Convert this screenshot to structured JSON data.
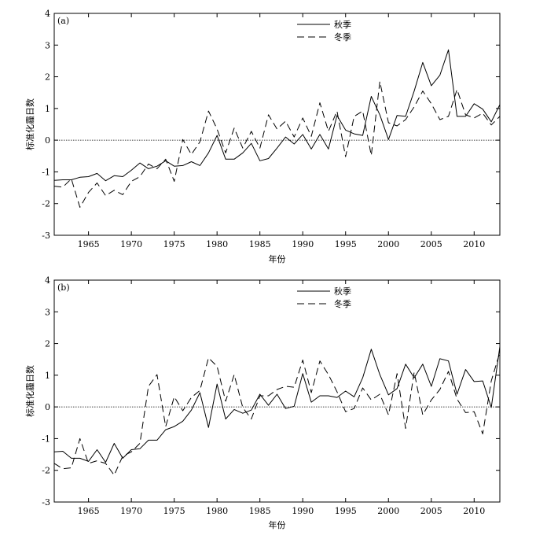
{
  "chart_data": [
    {
      "type": "line",
      "panel_label": "(a)",
      "xlabel": "年份",
      "ylabel": "标准化霾日数",
      "xlim": [
        1961,
        2013
      ],
      "ylim": [
        -3,
        4
      ],
      "xticks": [
        1965,
        1970,
        1975,
        1980,
        1985,
        1990,
        1995,
        2000,
        2005,
        2010
      ],
      "yticks": [
        -3,
        -2,
        -1,
        0,
        1,
        2,
        3,
        4
      ],
      "zero_line": "dotted",
      "legend": "top-center",
      "x": [
        1961,
        1962,
        1963,
        1964,
        1965,
        1966,
        1967,
        1968,
        1969,
        1970,
        1971,
        1972,
        1973,
        1974,
        1975,
        1976,
        1977,
        1978,
        1979,
        1980,
        1981,
        1982,
        1983,
        1984,
        1985,
        1986,
        1987,
        1988,
        1989,
        1990,
        1991,
        1992,
        1993,
        1994,
        1995,
        1996,
        1997,
        1998,
        1999,
        2000,
        2001,
        2002,
        2003,
        2004,
        2005,
        2006,
        2007,
        2008,
        2009,
        2010,
        2011,
        2012,
        2013
      ],
      "series": [
        {
          "name": "秋季",
          "style": "solid",
          "values": [
            -1.27,
            -1.25,
            -1.25,
            -1.17,
            -1.15,
            -1.05,
            -1.28,
            -1.12,
            -1.15,
            -0.95,
            -0.72,
            -0.9,
            -0.82,
            -0.65,
            -0.82,
            -0.8,
            -0.68,
            -0.8,
            -0.4,
            0.15,
            -0.6,
            -0.6,
            -0.4,
            -0.1,
            -0.65,
            -0.58,
            -0.25,
            0.1,
            -0.12,
            0.18,
            -0.28,
            0.18,
            -0.28,
            0.78,
            0.32,
            0.2,
            0.15,
            1.38,
            0.8,
            0.02,
            0.78,
            0.75,
            1.55,
            2.45,
            1.72,
            2.05,
            2.85,
            0.75,
            0.75,
            1.15,
            0.98,
            0.58,
            1.12
          ]
        },
        {
          "name": "冬季",
          "style": "dashed",
          "values": [
            -1.45,
            -1.48,
            -1.22,
            -2.12,
            -1.65,
            -1.35,
            -1.75,
            -1.58,
            -1.72,
            -1.3,
            -1.15,
            -0.75,
            -0.9,
            -0.6,
            -1.3,
            0.02,
            -0.45,
            -0.05,
            0.92,
            0.35,
            -0.4,
            0.38,
            -0.25,
            0.28,
            -0.25,
            0.8,
            0.35,
            0.6,
            0.1,
            0.7,
            0.12,
            1.18,
            0.28,
            0.92,
            -0.52,
            0.75,
            0.92,
            -0.48,
            1.85,
            0.55,
            0.45,
            0.65,
            1.05,
            1.55,
            1.15,
            0.65,
            0.75,
            1.6,
            0.8,
            0.7,
            0.85,
            0.48,
            0.75
          ]
        }
      ]
    },
    {
      "type": "line",
      "panel_label": "(b)",
      "xlabel": "年份",
      "ylabel": "标准化霾日数",
      "xlim": [
        1961,
        2013
      ],
      "ylim": [
        -3,
        4
      ],
      "xticks": [
        1965,
        1970,
        1975,
        1980,
        1985,
        1990,
        1995,
        2000,
        2005,
        2010
      ],
      "yticks": [
        -3,
        -2,
        -1,
        0,
        1,
        2,
        3,
        4
      ],
      "zero_line": "dotted",
      "legend": "top-center",
      "x": [
        1961,
        1962,
        1963,
        1964,
        1965,
        1966,
        1967,
        1968,
        1969,
        1970,
        1971,
        1972,
        1973,
        1974,
        1975,
        1976,
        1977,
        1978,
        1979,
        1980,
        1981,
        1982,
        1983,
        1984,
        1985,
        1986,
        1987,
        1988,
        1989,
        1990,
        1991,
        1992,
        1993,
        1994,
        1995,
        1996,
        1997,
        1998,
        1999,
        2000,
        2001,
        2002,
        2003,
        2004,
        2005,
        2006,
        2007,
        2008,
        2009,
        2010,
        2011,
        2012,
        2013
      ],
      "series": [
        {
          "name": "秋季",
          "style": "solid",
          "values": [
            -1.42,
            -1.4,
            -1.62,
            -1.62,
            -1.72,
            -1.35,
            -1.75,
            -1.15,
            -1.62,
            -1.35,
            -1.32,
            -1.05,
            -1.05,
            -0.72,
            -0.62,
            -0.45,
            -0.1,
            0.45,
            -0.65,
            0.72,
            -0.38,
            -0.08,
            -0.2,
            -0.1,
            0.4,
            0.05,
            0.4,
            -0.05,
            0.02,
            1.05,
            0.15,
            0.35,
            0.35,
            0.3,
            0.5,
            0.32,
            0.92,
            1.82,
            1.02,
            0.38,
            0.58,
            1.35,
            0.92,
            1.35,
            0.65,
            1.52,
            1.45,
            0.4,
            1.18,
            0.8,
            0.82,
            -0.02,
            1.9
          ]
        },
        {
          "name": "冬季",
          "style": "dashed",
          "values": [
            -1.78,
            -1.95,
            -1.92,
            -1.0,
            -1.78,
            -1.7,
            -1.78,
            -2.15,
            -1.55,
            -1.42,
            -1.15,
            0.65,
            1.02,
            -0.62,
            0.32,
            -0.12,
            0.3,
            0.52,
            1.55,
            1.28,
            0.18,
            1.02,
            -0.02,
            -0.38,
            0.35,
            0.35,
            0.55,
            0.65,
            0.62,
            1.48,
            0.45,
            1.45,
            1.02,
            0.48,
            -0.15,
            -0.05,
            0.6,
            0.22,
            0.4,
            -0.25,
            1.05,
            -0.68,
            1.1,
            -0.25,
            0.22,
            0.55,
            1.12,
            0.25,
            -0.18,
            -0.15,
            -0.85,
            0.82,
            1.72
          ]
        }
      ]
    }
  ]
}
